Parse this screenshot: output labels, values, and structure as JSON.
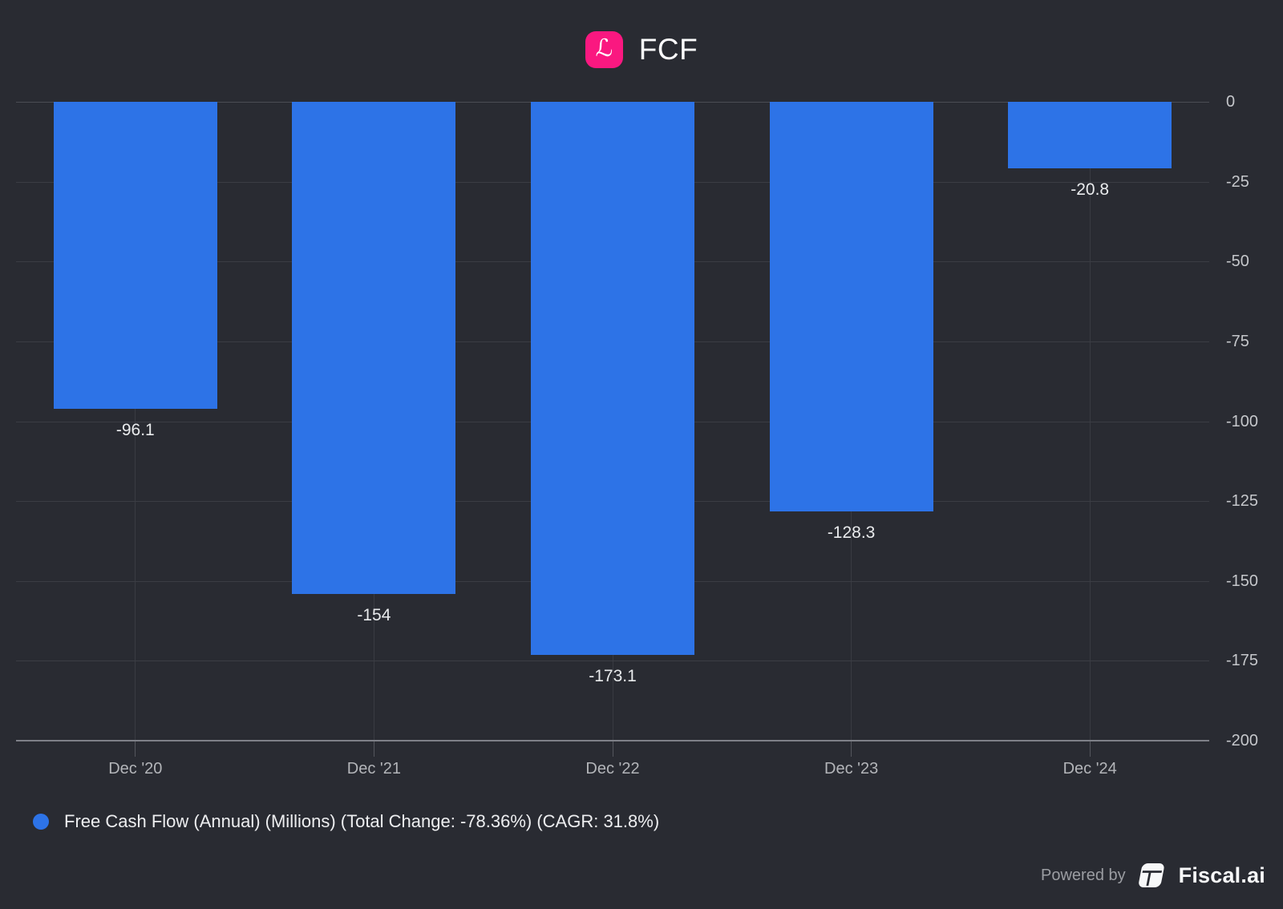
{
  "header": {
    "title": "FCF",
    "logo_glyph": "ℒ"
  },
  "chart_data": {
    "type": "bar",
    "title": "FCF",
    "categories": [
      "Dec '20",
      "Dec '21",
      "Dec '22",
      "Dec '23",
      "Dec '24"
    ],
    "series": [
      {
        "name": "Free Cash Flow (Annual) (Millions)",
        "values": [
          -96.1,
          -154,
          -173.1,
          -128.3,
          -20.8
        ]
      }
    ],
    "value_labels": [
      "-96.1",
      "-154",
      "-173.1",
      "-128.3",
      "-20.8"
    ],
    "ylim": [
      -200,
      0
    ],
    "yticks": [
      0,
      -25,
      -50,
      -75,
      -100,
      -125,
      -150,
      -175,
      -200
    ],
    "grid": true,
    "legend_position": "bottom-left",
    "bar_color": "#2d73e7"
  },
  "legend": {
    "label": "Free Cash Flow (Annual) (Millions) (Total Change: -78.36%) (CAGR: 31.8%)",
    "marker_color": "#2d73e7"
  },
  "footer": {
    "powered_by": "Powered by",
    "brand": "Fiscal.ai"
  },
  "colors": {
    "background": "#292b32",
    "bar": "#2d73e7",
    "accent_pink": "#fa1880",
    "grid": "#3b3d44",
    "axis": "#7e8088"
  }
}
